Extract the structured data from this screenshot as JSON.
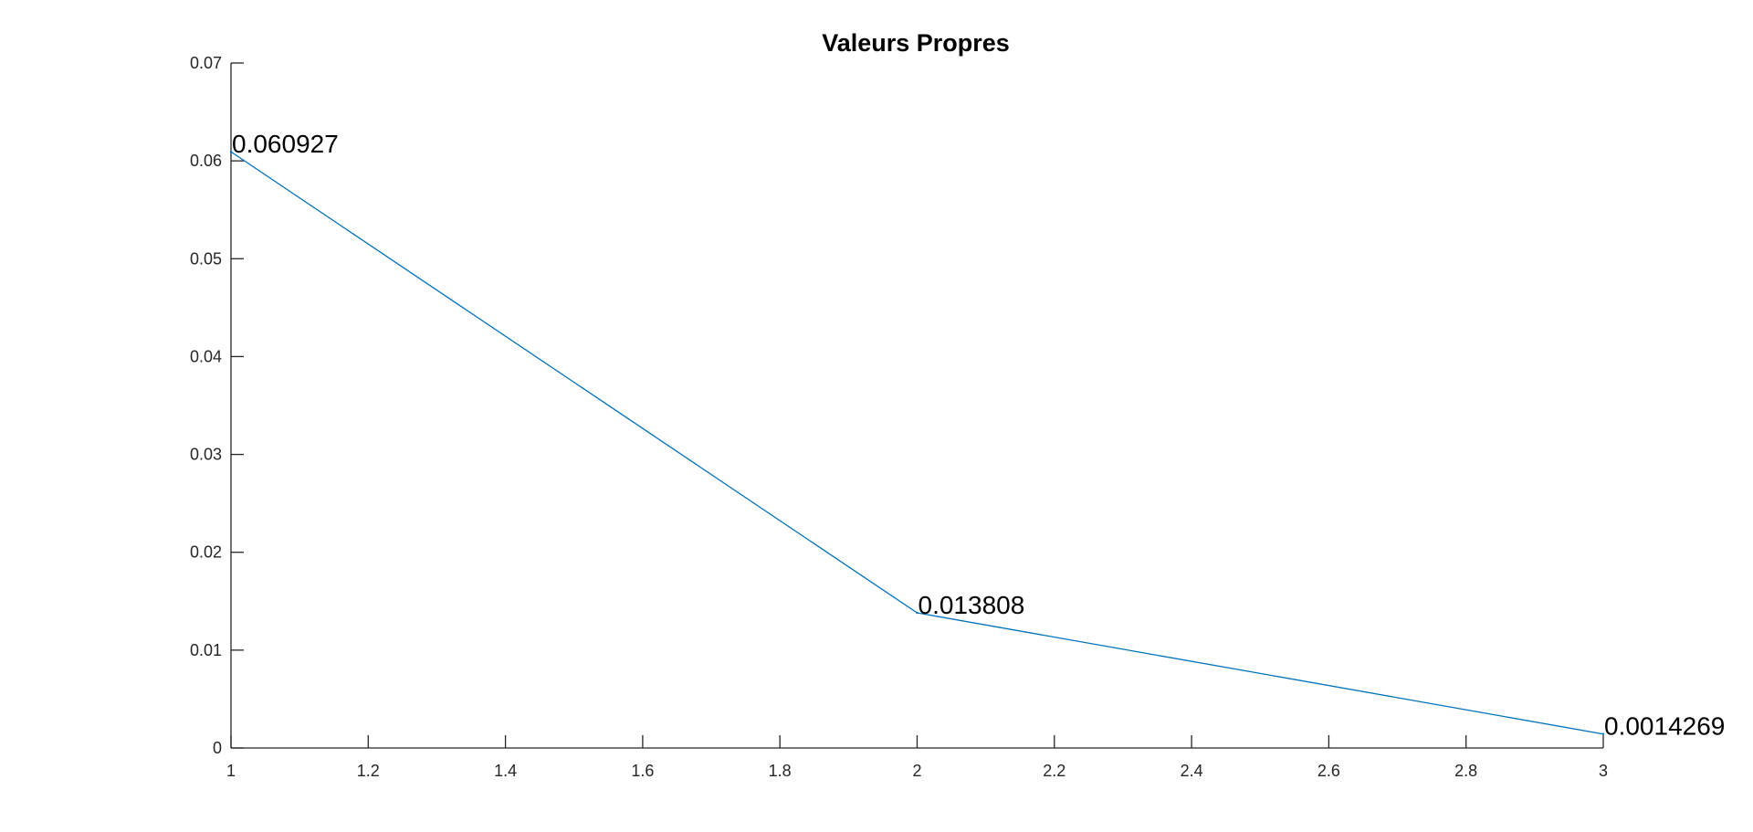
{
  "chart_data": {
    "type": "line",
    "title": "Valeurs Propres",
    "xlabel": "",
    "ylabel": "",
    "x": [
      1,
      2,
      3
    ],
    "series": [
      {
        "values": [
          0.060927,
          0.013808,
          0.0014269
        ],
        "color": "#0072BD"
      }
    ],
    "data_labels": [
      "0.060927",
      "0.013808",
      "0.0014269"
    ],
    "xlim": [
      1,
      3
    ],
    "ylim": [
      0,
      0.07
    ],
    "xticks": [
      "1",
      "1.2",
      "1.4",
      "1.6",
      "1.8",
      "2",
      "2.2",
      "2.4",
      "2.6",
      "2.8",
      "3"
    ],
    "yticks": [
      "0",
      "0.01",
      "0.02",
      "0.03",
      "0.04",
      "0.05",
      "0.06",
      "0.07"
    ],
    "grid": false,
    "legend": "none"
  }
}
